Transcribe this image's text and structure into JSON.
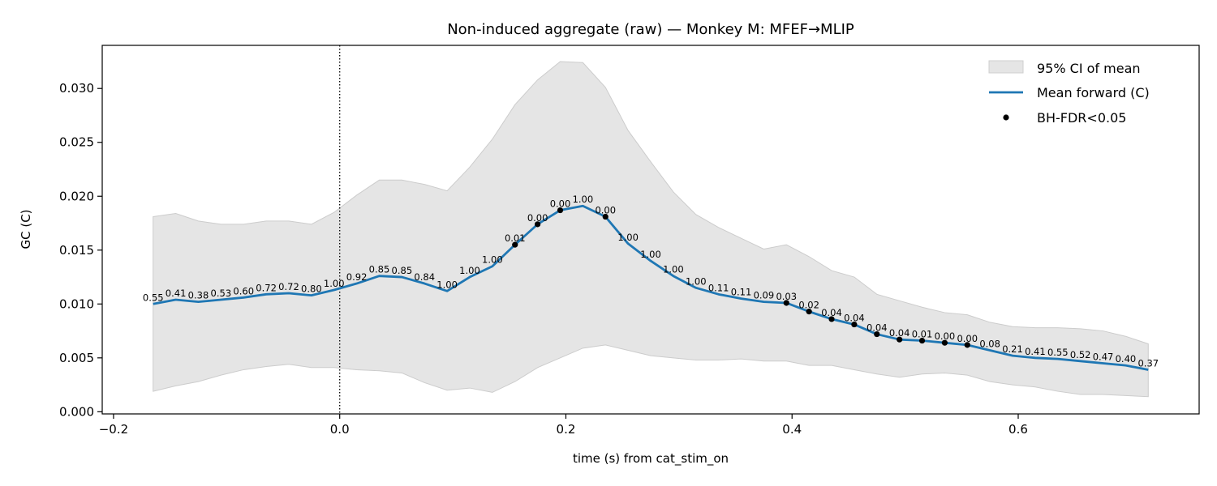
{
  "chart_data": {
    "type": "line",
    "title": "Non-induced aggregate (raw) — Monkey M: MFEF→MLIP",
    "xlabel": "time (s) from cat_stim_on",
    "ylabel": "GC (C)",
    "xlim": [
      -0.21,
      0.76
    ],
    "ylim": [
      -0.0002,
      0.034
    ],
    "xticks": [
      -0.2,
      0.0,
      0.2,
      0.4,
      0.6
    ],
    "xtick_labels": [
      "−0.2",
      "0.0",
      "0.2",
      "0.4",
      "0.6"
    ],
    "yticks": [
      0.0,
      0.005,
      0.01,
      0.015,
      0.02,
      0.025,
      0.03
    ],
    "ytick_labels": [
      "0.000",
      "0.005",
      "0.010",
      "0.015",
      "0.020",
      "0.025",
      "0.030"
    ],
    "vline_x": 0.0,
    "grid": false,
    "legend_placement": "top-right",
    "legend": {
      "ci": "95% CI of mean",
      "mean": "Mean forward (C)",
      "sig": "BH-FDR<0.05"
    },
    "colors": {
      "mean": "#1f77b4",
      "ci": "#d9d9d9",
      "sig": "#000000"
    },
    "x": [
      -0.165,
      -0.145,
      -0.125,
      -0.105,
      -0.085,
      -0.065,
      -0.045,
      -0.025,
      -0.005,
      0.015,
      0.035,
      0.055,
      0.075,
      0.095,
      0.115,
      0.135,
      0.155,
      0.175,
      0.195,
      0.215,
      0.235,
      0.255,
      0.275,
      0.295,
      0.315,
      0.335,
      0.355,
      0.375,
      0.395,
      0.415,
      0.435,
      0.455,
      0.475,
      0.495,
      0.515,
      0.535,
      0.555,
      0.575,
      0.595,
      0.615,
      0.635,
      0.655,
      0.675,
      0.695,
      0.715
    ],
    "mean": [
      0.01,
      0.0104,
      0.0102,
      0.0104,
      0.0106,
      0.0109,
      0.011,
      0.0108,
      0.0113,
      0.0119,
      0.0126,
      0.0125,
      0.0119,
      0.0112,
      0.0125,
      0.0135,
      0.0155,
      0.0174,
      0.0187,
      0.0191,
      0.0181,
      0.0156,
      0.014,
      0.0126,
      0.0115,
      0.0109,
      0.0105,
      0.0102,
      0.0101,
      0.0093,
      0.0086,
      0.0081,
      0.0072,
      0.0067,
      0.0066,
      0.0064,
      0.0062,
      0.0057,
      0.0052,
      0.005,
      0.0049,
      0.0047,
      0.0045,
      0.0043,
      0.0039
    ],
    "ci_upper": [
      0.0181,
      0.0184,
      0.0177,
      0.0174,
      0.0174,
      0.0177,
      0.0177,
      0.0174,
      0.0185,
      0.0201,
      0.0215,
      0.0215,
      0.0211,
      0.0205,
      0.0227,
      0.0253,
      0.0285,
      0.0308,
      0.0325,
      0.0324,
      0.0301,
      0.0261,
      0.0232,
      0.0204,
      0.0183,
      0.0171,
      0.0161,
      0.0151,
      0.0155,
      0.0144,
      0.0131,
      0.0125,
      0.0109,
      0.0103,
      0.0097,
      0.0092,
      0.009,
      0.0083,
      0.0079,
      0.0078,
      0.0078,
      0.0077,
      0.0075,
      0.007,
      0.0063
    ],
    "ci_lower": [
      0.0019,
      0.0024,
      0.0028,
      0.0034,
      0.0039,
      0.0042,
      0.0044,
      0.0041,
      0.0041,
      0.0039,
      0.0038,
      0.0036,
      0.0027,
      0.002,
      0.0022,
      0.0018,
      0.0028,
      0.0041,
      0.005,
      0.0059,
      0.0062,
      0.0057,
      0.0052,
      0.005,
      0.0048,
      0.0048,
      0.0049,
      0.0047,
      0.0047,
      0.0043,
      0.0043,
      0.0039,
      0.0035,
      0.0032,
      0.0035,
      0.0036,
      0.0034,
      0.0028,
      0.0025,
      0.0023,
      0.0019,
      0.0016,
      0.0016,
      0.0015,
      0.0014
    ],
    "p_labels": [
      "0.55",
      "0.41",
      "0.38",
      "0.53",
      "0.60",
      "0.72",
      "0.72",
      "0.80",
      "1.00",
      "0.92",
      "0.85",
      "0.85",
      "0.84",
      "1.00",
      "1.00",
      "1.00",
      "0.01",
      "0.00",
      "0.00",
      "1.00",
      "0.00",
      "1.00",
      "1.00",
      "1.00",
      "1.00",
      "0.11",
      "0.11",
      "0.09",
      "0.03",
      "0.02",
      "0.04",
      "0.04",
      "0.04",
      "0.04",
      "0.01",
      "0.00",
      "0.00",
      "0.08",
      "0.21",
      "0.41",
      "0.55",
      "0.52",
      "0.47",
      "0.40",
      "0.37"
    ],
    "significant": [
      false,
      false,
      false,
      false,
      false,
      false,
      false,
      false,
      false,
      false,
      false,
      false,
      false,
      false,
      false,
      false,
      true,
      true,
      true,
      false,
      true,
      false,
      false,
      false,
      false,
      false,
      false,
      false,
      true,
      true,
      true,
      true,
      true,
      true,
      true,
      true,
      true,
      false,
      false,
      false,
      false,
      false,
      false,
      false,
      false
    ]
  }
}
